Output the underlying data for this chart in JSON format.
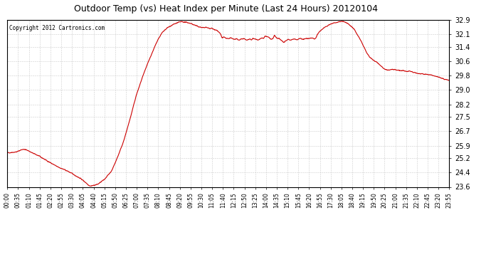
{
  "title": "Outdoor Temp (vs) Heat Index per Minute (Last 24 Hours) 20120104",
  "copyright": "Copyright 2012 Cartronics.com",
  "bg_color": "#ffffff",
  "plot_bg_color": "#ffffff",
  "grid_color": "#cccccc",
  "line_color": "#cc0000",
  "y_ticks": [
    23.6,
    24.4,
    25.2,
    25.9,
    26.7,
    27.5,
    28.2,
    29.0,
    29.8,
    30.6,
    31.4,
    32.1,
    32.9
  ],
  "x_tick_labels": [
    "00:00",
    "00:35",
    "01:10",
    "01:45",
    "02:20",
    "02:55",
    "03:30",
    "04:05",
    "04:40",
    "05:15",
    "05:50",
    "06:25",
    "07:00",
    "07:35",
    "08:10",
    "08:45",
    "09:20",
    "09:55",
    "10:30",
    "11:05",
    "11:40",
    "12:15",
    "12:50",
    "13:25",
    "14:00",
    "14:35",
    "15:10",
    "15:45",
    "16:20",
    "16:55",
    "17:30",
    "18:05",
    "18:40",
    "19:15",
    "19:50",
    "20:25",
    "21:00",
    "21:35",
    "22:10",
    "22:45",
    "23:20",
    "23:55"
  ],
  "ymin": 23.6,
  "ymax": 32.9,
  "key_x": [
    0,
    30,
    50,
    65,
    80,
    100,
    120,
    140,
    160,
    180,
    200,
    220,
    240,
    255,
    265,
    270,
    280,
    295,
    315,
    340,
    360,
    380,
    400,
    420,
    440,
    460,
    475,
    490,
    505,
    520,
    525,
    530,
    535,
    540,
    545,
    550,
    555,
    560,
    565,
    570,
    575,
    580,
    585,
    590,
    595,
    600,
    605,
    610,
    615,
    620,
    625,
    630,
    635,
    640,
    645,
    650,
    655,
    660,
    665,
    670,
    675,
    680,
    685,
    690,
    695,
    700,
    705,
    710,
    715,
    720,
    725,
    730,
    735,
    740,
    745,
    750,
    755,
    760,
    765,
    770,
    775,
    780,
    785,
    790,
    795,
    800,
    805,
    810,
    815,
    820,
    825,
    830,
    835,
    840,
    845,
    850,
    855,
    860,
    865,
    870,
    875,
    880,
    885,
    890,
    895,
    900,
    905,
    910,
    915,
    920,
    925,
    930,
    935,
    940,
    945,
    950,
    955,
    960,
    965,
    970,
    975,
    980,
    985,
    990,
    995,
    1000,
    1005,
    1010,
    1020,
    1030,
    1040,
    1050,
    1060,
    1070,
    1080,
    1090,
    1095,
    1100,
    1110,
    1120,
    1130,
    1140,
    1150,
    1160,
    1165,
    1170,
    1180,
    1190,
    1200,
    1210,
    1220,
    1230,
    1240,
    1245,
    1255,
    1265,
    1275,
    1285,
    1295,
    1305,
    1310,
    1315,
    1325,
    1335,
    1345,
    1355,
    1365,
    1375,
    1380,
    1385,
    1395,
    1405,
    1415,
    1425,
    1440
  ],
  "key_y": [
    25.5,
    25.55,
    25.7,
    25.65,
    25.5,
    25.35,
    25.15,
    24.95,
    24.75,
    24.6,
    24.45,
    24.25,
    24.05,
    23.85,
    23.7,
    23.65,
    23.68,
    23.75,
    24.0,
    24.5,
    25.3,
    26.2,
    27.4,
    28.7,
    29.7,
    30.6,
    31.2,
    31.8,
    32.2,
    32.45,
    32.5,
    32.55,
    32.6,
    32.65,
    32.68,
    32.72,
    32.75,
    32.78,
    32.8,
    32.8,
    32.79,
    32.78,
    32.76,
    32.75,
    32.72,
    32.7,
    32.65,
    32.62,
    32.58,
    32.55,
    32.52,
    32.5,
    32.48,
    32.47,
    32.5,
    32.48,
    32.45,
    32.42,
    32.45,
    32.4,
    32.38,
    32.35,
    32.3,
    32.2,
    32.1,
    31.9,
    31.95,
    31.9,
    31.88,
    31.85,
    31.88,
    31.9,
    31.85,
    31.82,
    31.85,
    31.8,
    31.78,
    31.82,
    31.85,
    31.88,
    31.82,
    31.78,
    31.82,
    31.85,
    31.8,
    31.88,
    31.85,
    31.82,
    31.78,
    31.8,
    31.85,
    31.9,
    31.88,
    32.0,
    31.98,
    31.95,
    31.88,
    31.82,
    31.85,
    32.05,
    31.95,
    31.85,
    31.88,
    31.82,
    31.75,
    31.65,
    31.72,
    31.78,
    31.82,
    31.8,
    31.78,
    31.82,
    31.85,
    31.82,
    31.8,
    31.85,
    31.88,
    31.85,
    31.82,
    31.85,
    31.88,
    31.85,
    31.88,
    31.9,
    31.88,
    31.85,
    31.9,
    32.1,
    32.3,
    32.45,
    32.55,
    32.65,
    32.72,
    32.75,
    32.8,
    32.82,
    32.82,
    32.78,
    32.7,
    32.55,
    32.4,
    32.1,
    31.8,
    31.45,
    31.3,
    31.1,
    30.85,
    30.7,
    30.6,
    30.45,
    30.3,
    30.15,
    30.1,
    30.12,
    30.15,
    30.12,
    30.1,
    30.08,
    30.06,
    30.04,
    30.05,
    30.02,
    29.98,
    29.94,
    29.9,
    29.88,
    29.86,
    29.85,
    29.85,
    29.82,
    29.78,
    29.72,
    29.65,
    29.6,
    29.55
  ]
}
